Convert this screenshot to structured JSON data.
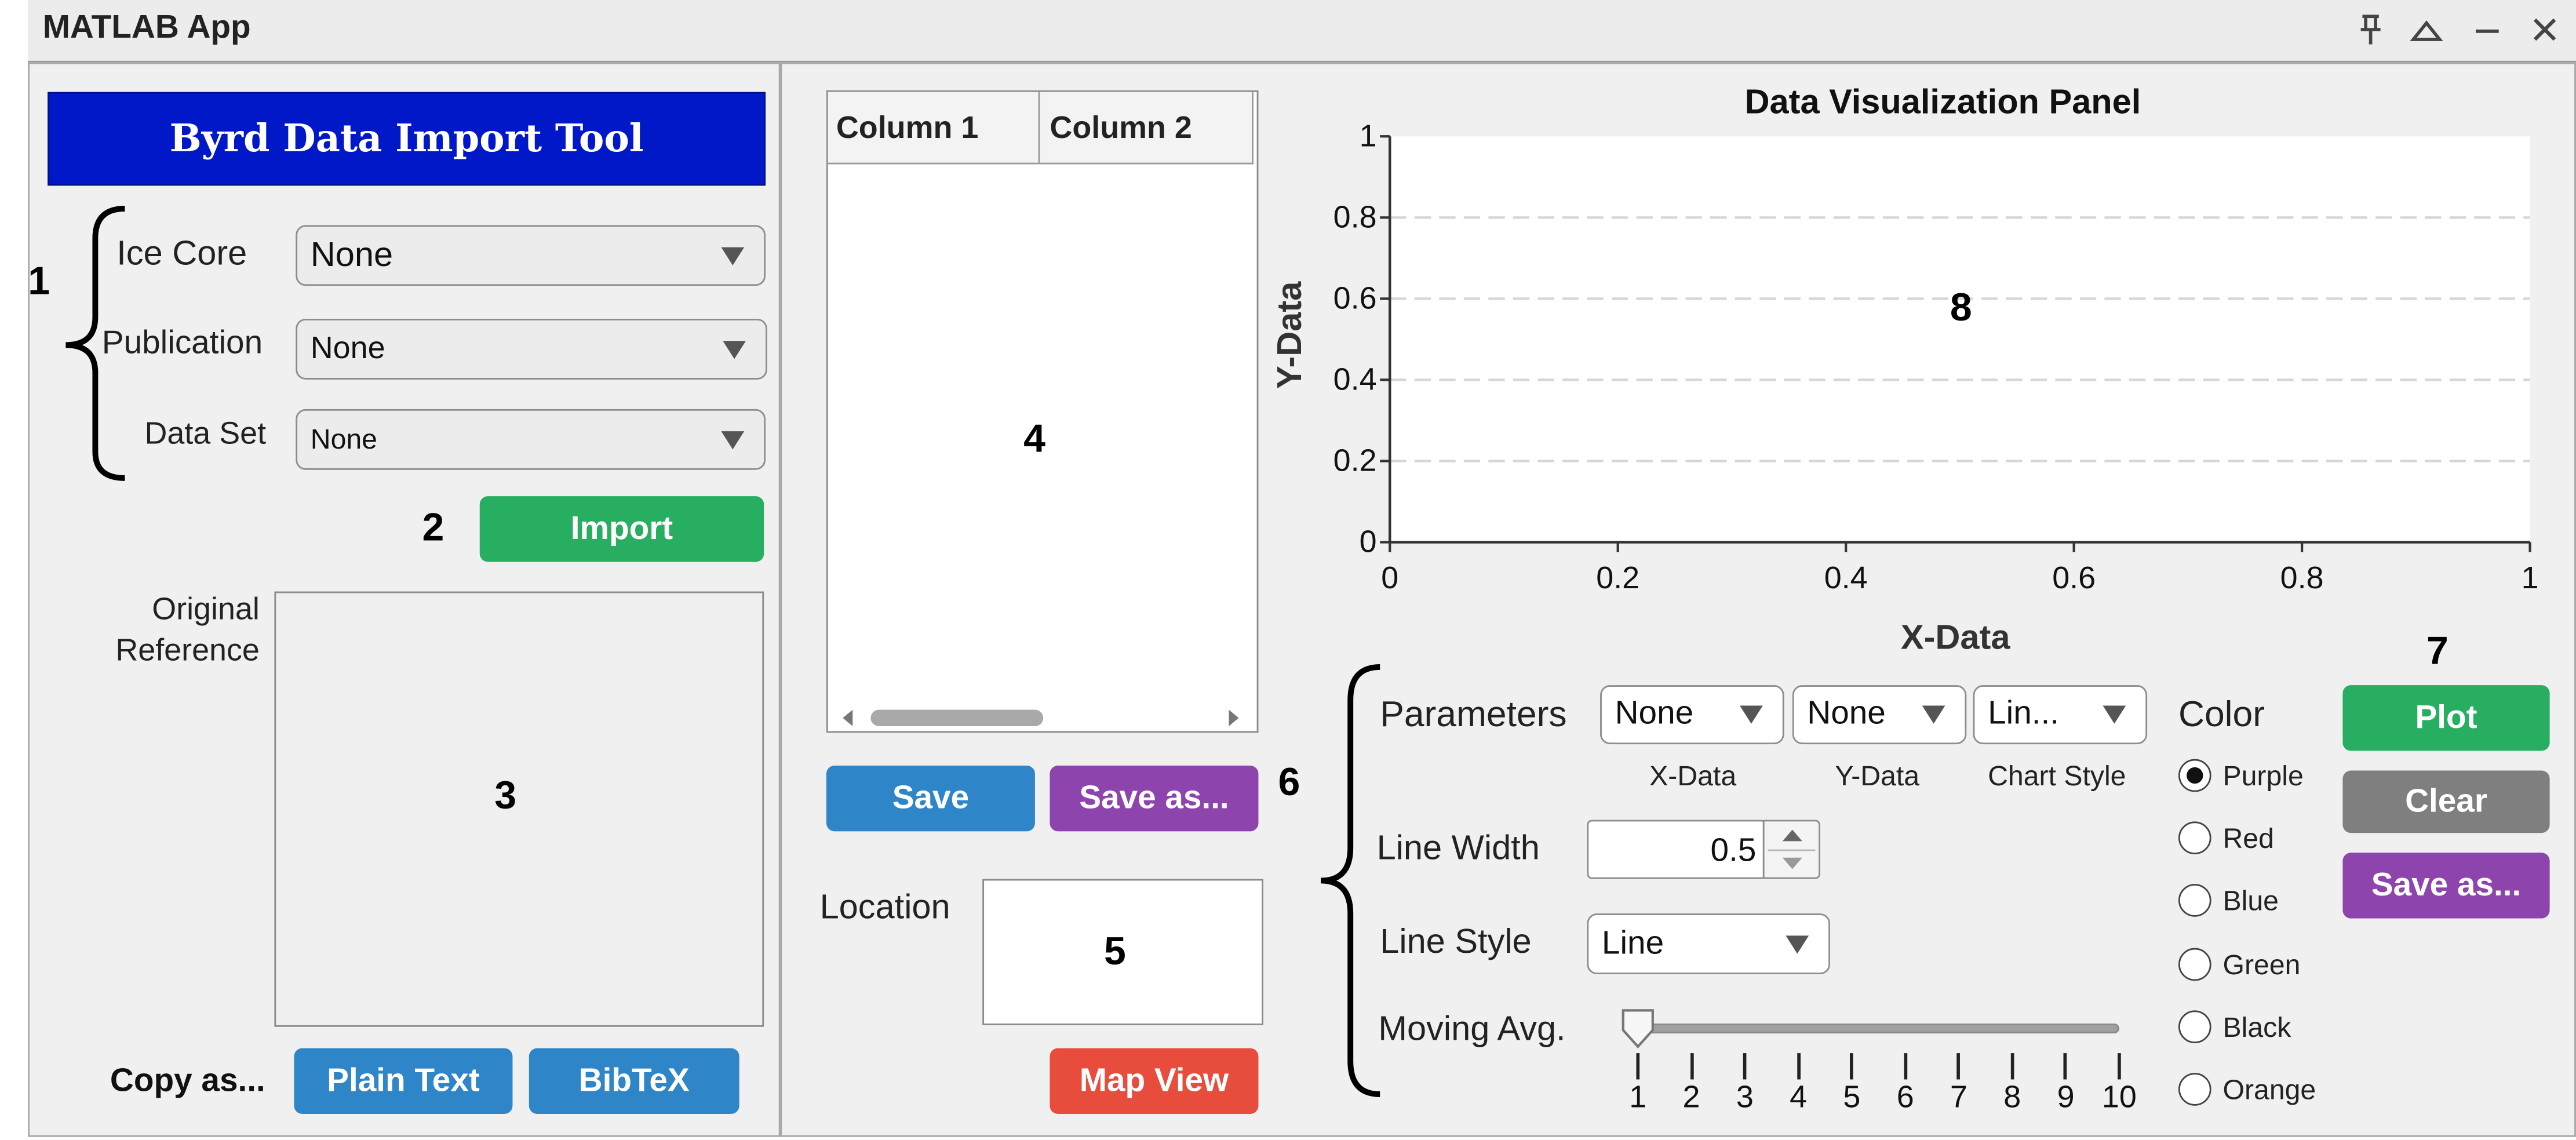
{
  "window": {
    "title": "MATLAB App",
    "controls": [
      "pin-icon",
      "maximize-icon",
      "minimize-icon",
      "close-icon"
    ]
  },
  "left_panel": {
    "header": "Byrd Data Import Tool",
    "ice_core": {
      "label": "Ice Core",
      "value": "None"
    },
    "publication": {
      "label": "Publication",
      "value": "None"
    },
    "data_set": {
      "label": "Data Set",
      "value": "None"
    },
    "import_label": "Import",
    "reference_label_1": "Original",
    "reference_label_2": "Reference",
    "copy_as_label": "Copy as...",
    "plain_text_label": "Plain Text",
    "bibtex_label": "BibTeX"
  },
  "middle_panel": {
    "table_columns": [
      "Column 1",
      "Column 2"
    ],
    "save_label": "Save",
    "save_as_label": "Save as...",
    "location_label": "Location",
    "map_view_label": "Map View"
  },
  "callouts": {
    "n1": "1",
    "n2": "2",
    "n3": "3",
    "n4": "4",
    "n5": "5",
    "n6": "6",
    "n7": "7",
    "n8": "8"
  },
  "chart_data": {
    "type": "line",
    "title": "Data Visualization Panel",
    "xlabel": "X-Data",
    "ylabel": "Y-Data",
    "xlim": [
      0,
      1
    ],
    "ylim": [
      0,
      1
    ],
    "x_ticks": [
      "0",
      "0.2",
      "0.4",
      "0.6",
      "0.8",
      "1"
    ],
    "y_ticks": [
      "0",
      "0.2",
      "0.4",
      "0.6",
      "0.8",
      "1"
    ],
    "grid": "horizontal dashed",
    "series": []
  },
  "controls": {
    "parameters_label": "Parameters",
    "x_data": {
      "value": "None",
      "caption": "X-Data"
    },
    "y_data": {
      "value": "None",
      "caption": "Y-Data"
    },
    "chart_style": {
      "value": "Lin...",
      "caption": "Chart Style"
    },
    "line_width": {
      "label": "Line Width",
      "value": "0.5"
    },
    "line_style": {
      "label": "Line Style",
      "value": "Line"
    },
    "moving_avg": {
      "label": "Moving Avg.",
      "value": 1,
      "min": 1,
      "max": 10,
      "ticks": [
        "1",
        "2",
        "3",
        "4",
        "5",
        "6",
        "7",
        "8",
        "9",
        "10"
      ]
    },
    "color": {
      "label": "Color",
      "options": [
        "Purple",
        "Red",
        "Blue",
        "Green",
        "Black",
        "Orange"
      ],
      "selected": "Purple"
    },
    "plot_label": "Plot",
    "clear_label": "Clear",
    "save_as_label": "Save as..."
  },
  "colors": {
    "header_blue": "#0018c8",
    "green": "#27ae60",
    "blue": "#2e86c8",
    "purple": "#8e44ad",
    "gray": "#7f7f7f",
    "red": "#e74c3c"
  }
}
